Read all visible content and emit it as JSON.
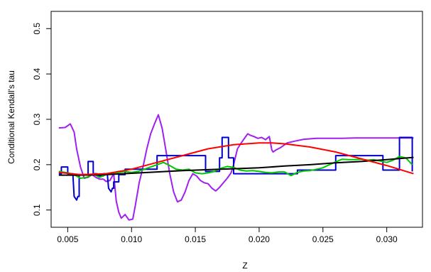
{
  "chart_data": {
    "type": "line",
    "title": "",
    "xlabel": "Z",
    "ylabel": "Conditional Kendall's tau",
    "xlim": [
      0.0037,
      0.0328
    ],
    "ylim": [
      0.062,
      0.538
    ],
    "xticks": [
      0.005,
      0.01,
      0.015,
      0.02,
      0.025,
      0.03
    ],
    "xtick_labels": [
      "0.005",
      "0.010",
      "0.015",
      "0.020",
      "0.025",
      "0.030"
    ],
    "yticks": [
      0.1,
      0.2,
      0.3,
      0.4,
      0.5
    ],
    "ytick_labels": [
      "0.1",
      "0.2",
      "0.3",
      "0.4",
      "0.5"
    ],
    "grid": false,
    "legend": "none",
    "series": [
      {
        "color": "#a020f0",
        "x": [
          0.0043,
          0.0048,
          0.0052,
          0.0055,
          0.0057,
          0.006,
          0.0063,
          0.0066,
          0.0069,
          0.0072,
          0.0075,
          0.0078,
          0.008,
          0.0083,
          0.0086,
          0.0088,
          0.009,
          0.0092,
          0.0095,
          0.0098,
          0.0101,
          0.0103,
          0.0106,
          0.0109,
          0.0112,
          0.0115,
          0.0118,
          0.0121,
          0.0124,
          0.0127,
          0.013,
          0.0133,
          0.0136,
          0.0139,
          0.0142,
          0.0145,
          0.0148,
          0.0151,
          0.0154,
          0.0157,
          0.016,
          0.0163,
          0.0166,
          0.0169,
          0.0172,
          0.0175,
          0.0178,
          0.018,
          0.0183,
          0.0186,
          0.0189,
          0.0191,
          0.0193,
          0.0196,
          0.0199,
          0.0202,
          0.0205,
          0.0208,
          0.021,
          0.0211,
          0.0213,
          0.0217,
          0.0222,
          0.0228,
          0.0235,
          0.0245,
          0.0255,
          0.0265,
          0.0275,
          0.0285,
          0.0295,
          0.0305,
          0.0315,
          0.0321
        ],
        "y": [
          0.281,
          0.282,
          0.29,
          0.272,
          0.235,
          0.195,
          0.17,
          0.172,
          0.178,
          0.172,
          0.168,
          0.168,
          0.163,
          0.165,
          0.18,
          0.12,
          0.095,
          0.082,
          0.09,
          0.078,
          0.08,
          0.11,
          0.16,
          0.195,
          0.235,
          0.268,
          0.29,
          0.31,
          0.28,
          0.23,
          0.18,
          0.14,
          0.118,
          0.122,
          0.14,
          0.165,
          0.18,
          0.175,
          0.165,
          0.16,
          0.158,
          0.148,
          0.142,
          0.15,
          0.16,
          0.17,
          0.182,
          0.2,
          0.235,
          0.248,
          0.26,
          0.268,
          0.265,
          0.262,
          0.258,
          0.26,
          0.255,
          0.262,
          0.232,
          0.228,
          0.232,
          0.238,
          0.248,
          0.252,
          0.256,
          0.258,
          0.258,
          0.258,
          0.259,
          0.259,
          0.259,
          0.259,
          0.259,
          0.259
        ]
      },
      {
        "color": "#0000cd",
        "x": [
          0.0043,
          0.0045,
          0.0045,
          0.005,
          0.005,
          0.0054,
          0.0055,
          0.0057,
          0.0058,
          0.0059,
          0.0059,
          0.0064,
          0.0066,
          0.0066,
          0.007,
          0.007,
          0.0073,
          0.0073,
          0.0078,
          0.0078,
          0.0081,
          0.0082,
          0.0084,
          0.0085,
          0.0086,
          0.0086,
          0.009,
          0.009,
          0.0095,
          0.0095,
          0.012,
          0.012,
          0.0158,
          0.0158,
          0.0169,
          0.0169,
          0.0171,
          0.0171,
          0.0176,
          0.0176,
          0.018,
          0.018,
          0.023,
          0.023,
          0.026,
          0.026,
          0.0297,
          0.0297,
          0.0305,
          0.0305,
          0.031,
          0.031,
          0.032,
          0.032
        ],
        "y": [
          0.18,
          0.18,
          0.195,
          0.195,
          0.18,
          0.18,
          0.13,
          0.122,
          0.13,
          0.13,
          0.178,
          0.178,
          0.178,
          0.207,
          0.207,
          0.18,
          0.18,
          0.175,
          0.175,
          0.18,
          0.18,
          0.148,
          0.14,
          0.148,
          0.148,
          0.162,
          0.162,
          0.178,
          0.178,
          0.19,
          0.19,
          0.22,
          0.22,
          0.185,
          0.185,
          0.215,
          0.215,
          0.26,
          0.26,
          0.215,
          0.215,
          0.18,
          0.18,
          0.188,
          0.188,
          0.22,
          0.22,
          0.188,
          0.188,
          0.188,
          0.188,
          0.26,
          0.26,
          0.185
        ]
      },
      {
        "color": "#00c800",
        "x": [
          0.0043,
          0.005,
          0.0055,
          0.006,
          0.0065,
          0.007,
          0.0075,
          0.008,
          0.0085,
          0.009,
          0.0095,
          0.01,
          0.0105,
          0.011,
          0.0115,
          0.012,
          0.0125,
          0.013,
          0.0135,
          0.014,
          0.0145,
          0.015,
          0.0155,
          0.016,
          0.0165,
          0.017,
          0.0175,
          0.018,
          0.0185,
          0.019,
          0.0195,
          0.02,
          0.0205,
          0.021,
          0.0215,
          0.022,
          0.0225,
          0.023,
          0.0235,
          0.024,
          0.0245,
          0.025,
          0.0255,
          0.026,
          0.0265,
          0.027,
          0.0275,
          0.028,
          0.0285,
          0.029,
          0.0295,
          0.03,
          0.0305,
          0.031,
          0.0315,
          0.032
        ],
        "y": [
          0.185,
          0.182,
          0.178,
          0.17,
          0.172,
          0.18,
          0.172,
          0.178,
          0.182,
          0.183,
          0.185,
          0.183,
          0.185,
          0.19,
          0.195,
          0.2,
          0.205,
          0.198,
          0.19,
          0.188,
          0.19,
          0.182,
          0.18,
          0.182,
          0.185,
          0.192,
          0.196,
          0.194,
          0.188,
          0.186,
          0.187,
          0.185,
          0.183,
          0.182,
          0.184,
          0.184,
          0.176,
          0.183,
          0.186,
          0.187,
          0.19,
          0.193,
          0.2,
          0.206,
          0.212,
          0.211,
          0.211,
          0.212,
          0.21,
          0.211,
          0.208,
          0.205,
          0.21,
          0.218,
          0.215,
          0.2
        ]
      },
      {
        "color": "#000000",
        "x": [
          0.0043,
          0.006,
          0.008,
          0.01,
          0.012,
          0.014,
          0.016,
          0.018,
          0.02,
          0.022,
          0.024,
          0.026,
          0.028,
          0.03,
          0.0321
        ],
        "y": [
          0.177,
          0.177,
          0.178,
          0.181,
          0.184,
          0.187,
          0.189,
          0.191,
          0.193,
          0.197,
          0.2,
          0.204,
          0.207,
          0.211,
          0.216
        ]
      },
      {
        "color": "#ff0000",
        "x": [
          0.0043,
          0.006,
          0.008,
          0.01,
          0.012,
          0.014,
          0.016,
          0.018,
          0.02,
          0.021,
          0.022,
          0.024,
          0.026,
          0.028,
          0.03,
          0.0321
        ],
        "y": [
          0.183,
          0.178,
          0.18,
          0.19,
          0.205,
          0.22,
          0.235,
          0.244,
          0.248,
          0.248,
          0.246,
          0.239,
          0.228,
          0.213,
          0.198,
          0.18
        ]
      }
    ]
  }
}
